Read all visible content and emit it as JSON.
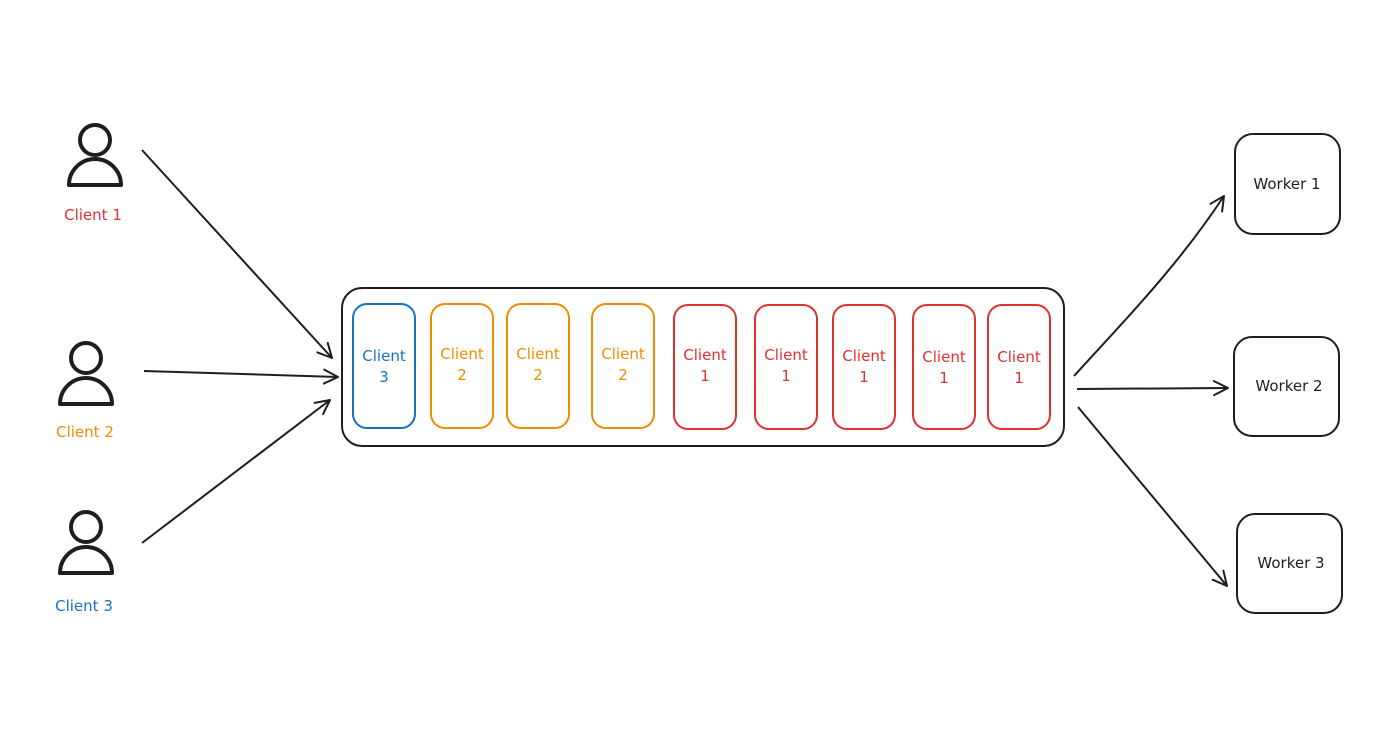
{
  "colors": {
    "client_1": "#e03131",
    "client_2": "#f08c00",
    "client_3": "#1971c2",
    "ink": "#1e1e1e"
  },
  "clients": [
    {
      "label": "Client 1",
      "color": "#e03131",
      "icon": "person-icon"
    },
    {
      "label": "Client 2",
      "color": "#f08c00",
      "icon": "person-icon"
    },
    {
      "label": "Client 3",
      "color": "#1971c2",
      "icon": "person-icon"
    }
  ],
  "queue": {
    "items": [
      {
        "line1": "Client",
        "line2": "3",
        "color": "#1971c2"
      },
      {
        "line1": "Client",
        "line2": "2",
        "color": "#f08c00"
      },
      {
        "line1": "Client",
        "line2": "2",
        "color": "#f08c00"
      },
      {
        "line1": "Client",
        "line2": "2",
        "color": "#f08c00"
      },
      {
        "line1": "Client",
        "line2": "1",
        "color": "#e03131"
      },
      {
        "line1": "Client",
        "line2": "1",
        "color": "#e03131"
      },
      {
        "line1": "Client",
        "line2": "1",
        "color": "#e03131"
      },
      {
        "line1": "Client",
        "line2": "1",
        "color": "#e03131"
      },
      {
        "line1": "Client",
        "line2": "1",
        "color": "#e03131"
      }
    ]
  },
  "workers": [
    {
      "label": "Worker 1"
    },
    {
      "label": "Worker 2"
    },
    {
      "label": "Worker 3"
    }
  ]
}
